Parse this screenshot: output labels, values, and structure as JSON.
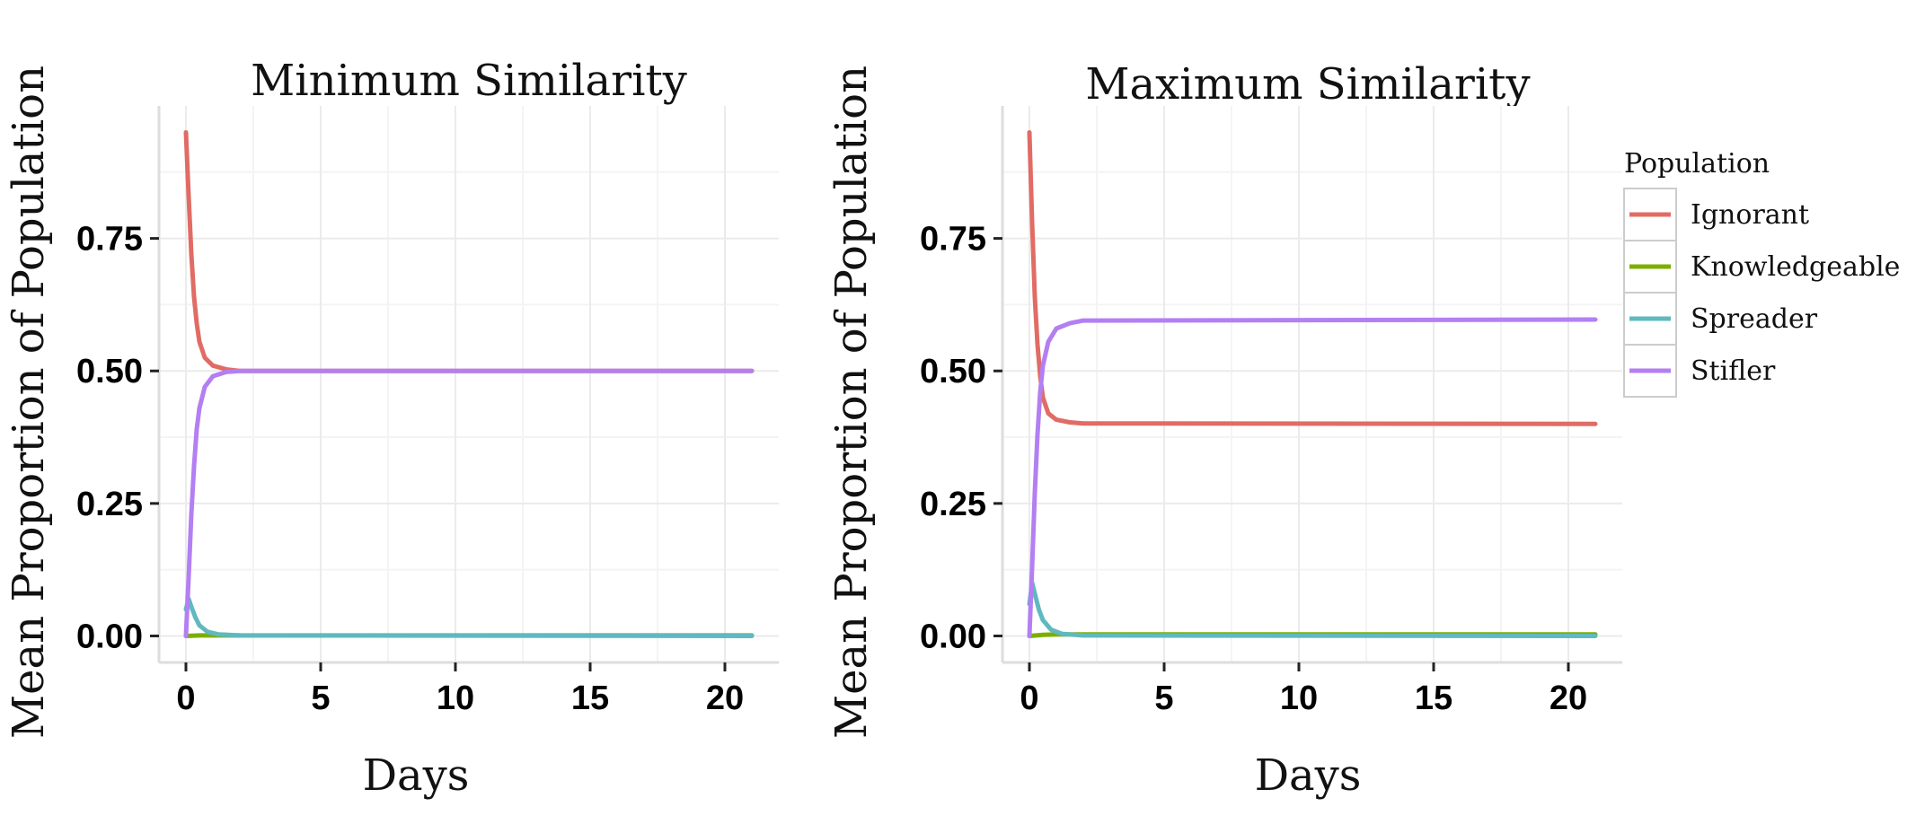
{
  "chart_data": [
    {
      "type": "line",
      "title": "Minimum Similarity",
      "xlabel": "Days",
      "ylabel": "Mean Proportion of  Population",
      "xlim": [
        -1,
        22
      ],
      "ylim": [
        -0.05,
        1.0
      ],
      "x_ticks": [
        "0",
        "5",
        "10",
        "15",
        "20"
      ],
      "y_ticks": [
        "0.00",
        "0.25",
        "0.50",
        "0.75"
      ],
      "grid": true,
      "series": [
        {
          "name": "Ignorant",
          "color": "#E06C65",
          "points": [
            [
              0,
              0.95
            ],
            [
              0.1,
              0.83
            ],
            [
              0.2,
              0.72
            ],
            [
              0.3,
              0.64
            ],
            [
              0.4,
              0.59
            ],
            [
              0.5,
              0.555
            ],
            [
              0.7,
              0.525
            ],
            [
              1.0,
              0.51
            ],
            [
              1.5,
              0.503
            ],
            [
              2,
              0.5
            ],
            [
              21,
              0.5
            ]
          ]
        },
        {
          "name": "Knowledgeable",
          "color": "#7CAE00",
          "points": [
            [
              0,
              0.0
            ],
            [
              0.5,
              0.001
            ],
            [
              1,
              0.001
            ],
            [
              21,
              0.001
            ]
          ]
        },
        {
          "name": "Spreader",
          "color": "#5FB9BE",
          "points": [
            [
              0,
              0.05
            ],
            [
              0.1,
              0.07
            ],
            [
              0.2,
              0.055
            ],
            [
              0.35,
              0.035
            ],
            [
              0.5,
              0.02
            ],
            [
              0.8,
              0.008
            ],
            [
              1.2,
              0.003
            ],
            [
              2,
              0.001
            ],
            [
              21,
              0.0
            ]
          ]
        },
        {
          "name": "Stifler",
          "color": "#B37FF2",
          "points": [
            [
              0,
              0.0
            ],
            [
              0.1,
              0.11
            ],
            [
              0.2,
              0.23
            ],
            [
              0.3,
              0.32
            ],
            [
              0.4,
              0.39
            ],
            [
              0.5,
              0.43
            ],
            [
              0.7,
              0.47
            ],
            [
              1.0,
              0.49
            ],
            [
              1.5,
              0.498
            ],
            [
              2,
              0.5
            ],
            [
              21,
              0.5
            ]
          ]
        }
      ]
    },
    {
      "type": "line",
      "title": "Maximum Similarity",
      "xlabel": "Days",
      "ylabel": "Mean Proportion of  Population",
      "xlim": [
        -1,
        22
      ],
      "ylim": [
        -0.05,
        1.0
      ],
      "x_ticks": [
        "0",
        "5",
        "10",
        "15",
        "20"
      ],
      "y_ticks": [
        "0.00",
        "0.25",
        "0.50",
        "0.75"
      ],
      "grid": true,
      "series": [
        {
          "name": "Ignorant",
          "color": "#E06C65",
          "points": [
            [
              0,
              0.95
            ],
            [
              0.1,
              0.78
            ],
            [
              0.2,
              0.64
            ],
            [
              0.3,
              0.55
            ],
            [
              0.4,
              0.49
            ],
            [
              0.5,
              0.45
            ],
            [
              0.7,
              0.42
            ],
            [
              1.0,
              0.408
            ],
            [
              1.5,
              0.403
            ],
            [
              2,
              0.401
            ],
            [
              21,
              0.4
            ]
          ]
        },
        {
          "name": "Knowledgeable",
          "color": "#7CAE00",
          "points": [
            [
              0,
              0.0
            ],
            [
              0.5,
              0.002
            ],
            [
              1,
              0.003
            ],
            [
              2,
              0.003
            ],
            [
              21,
              0.003
            ]
          ]
        },
        {
          "name": "Spreader",
          "color": "#5FB9BE",
          "points": [
            [
              0,
              0.06
            ],
            [
              0.1,
              0.1
            ],
            [
              0.2,
              0.08
            ],
            [
              0.35,
              0.05
            ],
            [
              0.5,
              0.03
            ],
            [
              0.8,
              0.012
            ],
            [
              1.2,
              0.004
            ],
            [
              2,
              0.001
            ],
            [
              21,
              0.0
            ]
          ]
        },
        {
          "name": "Stifler",
          "color": "#B37FF2",
          "points": [
            [
              0,
              0.0
            ],
            [
              0.1,
              0.13
            ],
            [
              0.2,
              0.27
            ],
            [
              0.3,
              0.38
            ],
            [
              0.4,
              0.46
            ],
            [
              0.5,
              0.51
            ],
            [
              0.7,
              0.555
            ],
            [
              1.0,
              0.58
            ],
            [
              1.5,
              0.59
            ],
            [
              2,
              0.595
            ],
            [
              21,
              0.597
            ]
          ]
        }
      ]
    }
  ],
  "legend": {
    "title": "Population",
    "items": [
      {
        "label": "Ignorant",
        "color": "#E06C65"
      },
      {
        "label": "Knowledgeable",
        "color": "#7CAE00"
      },
      {
        "label": "Spreader",
        "color": "#5FB9BE"
      },
      {
        "label": "Stifler",
        "color": "#B37FF2"
      }
    ],
    "placement": "right"
  }
}
